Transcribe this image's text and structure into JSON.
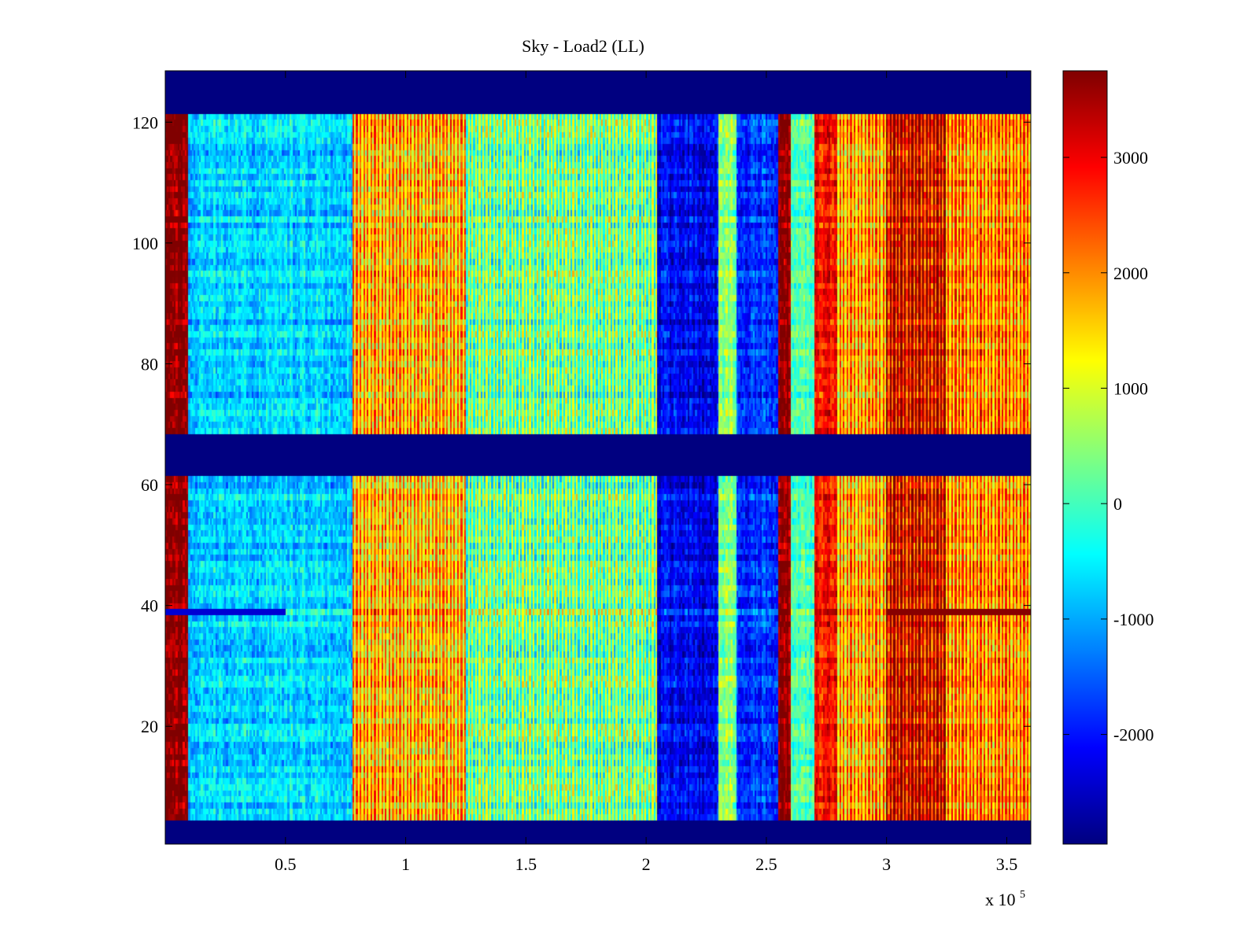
{
  "chart_data": {
    "type": "heatmap",
    "title": "Sky - Load2 (LL)",
    "xlabel": "",
    "ylabel": "",
    "x_exponent_label": "x 10",
    "x_exponent": "5",
    "xlim": [
      0,
      3.6
    ],
    "ylim": [
      0.5,
      128.5
    ],
    "x_ticks": [
      {
        "value": 0.5,
        "label": "0.5"
      },
      {
        "value": 1,
        "label": "1"
      },
      {
        "value": 1.5,
        "label": "1.5"
      },
      {
        "value": 2,
        "label": "2"
      },
      {
        "value": 2.5,
        "label": "2.5"
      },
      {
        "value": 3,
        "label": "3"
      },
      {
        "value": 3.5,
        "label": "3.5"
      }
    ],
    "y_ticks": [
      {
        "value": 20,
        "label": "20"
      },
      {
        "value": 40,
        "label": "40"
      },
      {
        "value": 60,
        "label": "60"
      },
      {
        "value": 80,
        "label": "80"
      },
      {
        "value": 100,
        "label": "100"
      },
      {
        "value": 120,
        "label": "120"
      }
    ],
    "colorbar": {
      "colormap": "jet",
      "clim": [
        -2950,
        3750
      ],
      "ticks": [
        {
          "value": -2000,
          "label": "-2000"
        },
        {
          "value": -1000,
          "label": "-1000"
        },
        {
          "value": 0,
          "label": "0"
        },
        {
          "value": 1000,
          "label": "1000"
        },
        {
          "value": 2000,
          "label": "2000"
        },
        {
          "value": 3000,
          "label": "3000"
        }
      ]
    },
    "masked_rows": [
      [
        1,
        4
      ],
      [
        62,
        68
      ],
      [
        122,
        128
      ]
    ],
    "column_profile": [
      {
        "x_start": 0.0,
        "x_end": 0.1,
        "value": 3700
      },
      {
        "x_start": 0.1,
        "x_end": 0.78,
        "value": -700
      },
      {
        "x_start": 0.78,
        "x_end": 1.25,
        "value": 1700
      },
      {
        "x_start": 1.25,
        "x_end": 2.05,
        "value": 300
      },
      {
        "x_start": 2.05,
        "x_end": 2.3,
        "value": -2200
      },
      {
        "x_start": 2.3,
        "x_end": 2.38,
        "value": 400
      },
      {
        "x_start": 2.38,
        "x_end": 2.55,
        "value": -1800
      },
      {
        "x_start": 2.55,
        "x_end": 2.6,
        "value": 3700
      },
      {
        "x_start": 2.6,
        "x_end": 2.7,
        "value": 0
      },
      {
        "x_start": 2.7,
        "x_end": 2.8,
        "value": 2800
      },
      {
        "x_start": 2.8,
        "x_end": 3.0,
        "value": 1800
      },
      {
        "x_start": 3.0,
        "x_end": 3.25,
        "value": 3000
      },
      {
        "x_start": 3.25,
        "x_end": 3.6,
        "value": 2000
      }
    ]
  }
}
